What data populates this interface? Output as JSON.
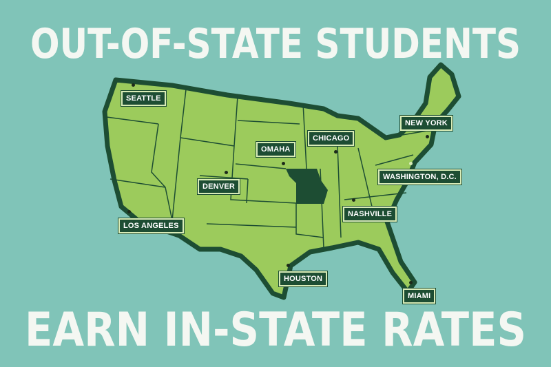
{
  "headline_top": "OUT-OF-STATE STUDENTS",
  "headline_bottom": "EARN IN-STATE RATES",
  "colors": {
    "background": "#80c4b8",
    "land": "#9ccb5c",
    "border": "#1d4d33",
    "highlight_state": "#1d4d33",
    "label_bg": "#1d4d33",
    "label_border": "#d9ecb8"
  },
  "highlighted_state": "Missouri",
  "cities": [
    {
      "name": "SEATTLE"
    },
    {
      "name": "DENVER"
    },
    {
      "name": "LOS ANGELES"
    },
    {
      "name": "OMAHA"
    },
    {
      "name": "CHICAGO"
    },
    {
      "name": "NEW YORK"
    },
    {
      "name": "WASHINGTON, D.C."
    },
    {
      "name": "NASHVILLE"
    },
    {
      "name": "HOUSTON"
    },
    {
      "name": "MIAMI"
    }
  ]
}
